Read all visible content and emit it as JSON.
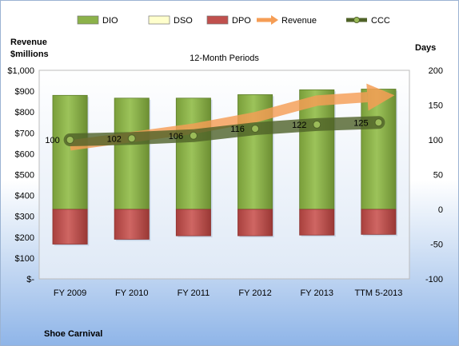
{
  "chart_data": {
    "type": "bar",
    "title": "12-Month Periods",
    "company": "Shoe Carnival",
    "left_axis_title": [
      "Revenue",
      "$millions"
    ],
    "right_axis_title": "Days",
    "categories": [
      "FY 2009",
      "FY 2010",
      "FY 2011",
      "FY 2012",
      "FY 2013",
      "TTM 5-2013"
    ],
    "left_ylim": [
      0,
      1000
    ],
    "left_ticks": [
      0,
      100,
      200,
      300,
      400,
      500,
      600,
      700,
      800,
      900,
      1000
    ],
    "left_tick_labels": [
      "$-",
      "$100",
      "$200",
      "$300",
      "$400",
      "$500",
      "$600",
      "$700",
      "$800",
      "$900",
      "$1,000"
    ],
    "right_ylim": [
      -100,
      200
    ],
    "right_ticks": [
      -100,
      -50,
      0,
      50,
      100,
      150,
      200
    ],
    "right_tick_labels": [
      "-100",
      "-50",
      "0",
      "50",
      "100",
      "150",
      "200"
    ],
    "legend_position": "top",
    "legend": [
      "DIO",
      "DSO",
      "DPO",
      "Revenue",
      "CCC"
    ],
    "series": [
      {
        "name": "DIO",
        "axis": "right",
        "kind": "stacked-bar-positive",
        "color": "#8cb24a",
        "values": [
          164,
          160,
          160,
          165,
          172,
          173
        ]
      },
      {
        "name": "DSO",
        "axis": "right",
        "kind": "stacked-bar-positive",
        "color": "#ffffcc",
        "values": [
          0,
          0,
          0,
          0,
          0,
          0
        ]
      },
      {
        "name": "DPO",
        "axis": "right",
        "kind": "bar-negative",
        "color": "#c0504d",
        "values": [
          -50,
          -43,
          -38,
          -38,
          -37,
          -36
        ]
      },
      {
        "name": "Revenue",
        "axis": "left",
        "kind": "arrow-line",
        "color": "#f59d55",
        "values": [
          640,
          680,
          720,
          775,
          855,
          875
        ]
      },
      {
        "name": "CCC",
        "axis": "right",
        "kind": "line-markers",
        "color": "#4f6228",
        "values": [
          100,
          102,
          106,
          116,
          122,
          125
        ],
        "data_labels": [
          "100",
          "102",
          "106",
          "116",
          "122",
          "125"
        ]
      }
    ]
  }
}
